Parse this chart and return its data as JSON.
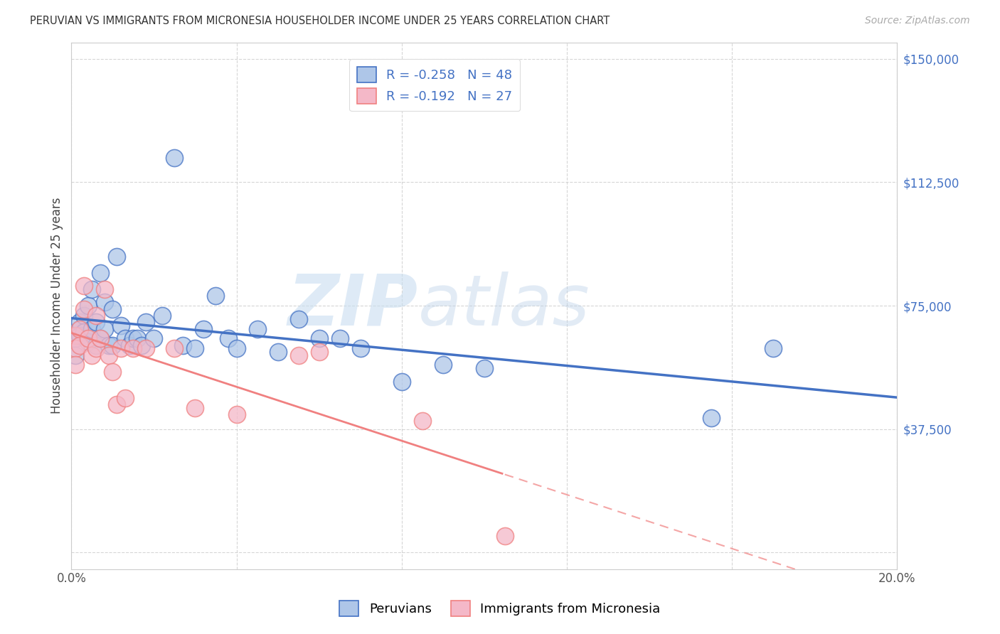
{
  "title": "PERUVIAN VS IMMIGRANTS FROM MICRONESIA HOUSEHOLDER INCOME UNDER 25 YEARS CORRELATION CHART",
  "source": "Source: ZipAtlas.com",
  "ylabel": "Householder Income Under 25 years",
  "legend_label1": "Peruvians",
  "legend_label2": "Immigrants from Micronesia",
  "r1": -0.258,
  "n1": 48,
  "r2": -0.192,
  "n2": 27,
  "xmin": 0.0,
  "xmax": 0.2,
  "ymin": 0,
  "ymax": 150000,
  "yticks": [
    0,
    37500,
    75000,
    112500,
    150000
  ],
  "color_blue": "#aec6e8",
  "color_pink": "#f4b8c8",
  "line_blue": "#4472c4",
  "line_pink": "#f08080",
  "watermark_zip": "ZIP",
  "watermark_atlas": "atlas",
  "blue_points_x": [
    0.001,
    0.001,
    0.002,
    0.002,
    0.002,
    0.003,
    0.003,
    0.004,
    0.004,
    0.005,
    0.005,
    0.006,
    0.006,
    0.007,
    0.007,
    0.008,
    0.008,
    0.009,
    0.01,
    0.01,
    0.011,
    0.012,
    0.013,
    0.014,
    0.015,
    0.016,
    0.017,
    0.018,
    0.02,
    0.022,
    0.025,
    0.027,
    0.03,
    0.032,
    0.035,
    0.038,
    0.04,
    0.045,
    0.05,
    0.055,
    0.06,
    0.065,
    0.07,
    0.08,
    0.09,
    0.1,
    0.155,
    0.17
  ],
  "blue_points_y": [
    65000,
    60000,
    68000,
    70000,
    66000,
    72000,
    67000,
    75000,
    64000,
    80000,
    68000,
    63000,
    70000,
    85000,
    65000,
    68000,
    76000,
    63000,
    74000,
    63000,
    90000,
    69000,
    65000,
    63000,
    65000,
    65000,
    63000,
    70000,
    65000,
    72000,
    120000,
    63000,
    62000,
    68000,
    78000,
    65000,
    62000,
    68000,
    61000,
    71000,
    65000,
    65000,
    62000,
    52000,
    57000,
    56000,
    41000,
    62000
  ],
  "pink_points_x": [
    0.001,
    0.001,
    0.001,
    0.002,
    0.002,
    0.003,
    0.003,
    0.004,
    0.005,
    0.006,
    0.006,
    0.007,
    0.008,
    0.009,
    0.01,
    0.011,
    0.012,
    0.013,
    0.015,
    0.018,
    0.025,
    0.03,
    0.04,
    0.055,
    0.06,
    0.085,
    0.105
  ],
  "pink_points_y": [
    66000,
    62000,
    57000,
    68000,
    63000,
    81000,
    74000,
    65000,
    60000,
    72000,
    62000,
    65000,
    80000,
    60000,
    55000,
    45000,
    62000,
    47000,
    62000,
    62000,
    62000,
    44000,
    42000,
    60000,
    61000,
    40000,
    5000
  ]
}
